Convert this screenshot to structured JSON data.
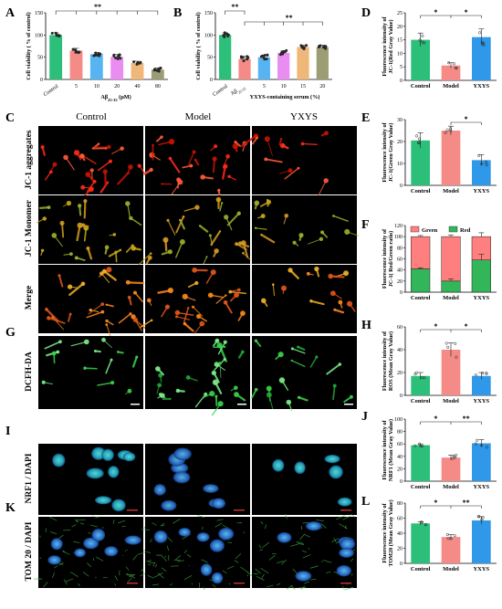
{
  "figure": {
    "panel_letters": [
      "A",
      "B",
      "C",
      "D",
      "E",
      "F",
      "G",
      "H",
      "I",
      "J",
      "K",
      "L"
    ],
    "columns": [
      "Control",
      "Model",
      "YXYS"
    ],
    "rows": [
      "JC-1 aggregates",
      "JC-1  Monomer",
      "Merge",
      "DCFH-DA",
      "NRF1 / DAPI",
      "TOM 20 / DAPI"
    ]
  },
  "colors": {
    "control_green": "#2cbf7a",
    "model_pink": "#f48b87",
    "yxys_blue": "#2f98e8",
    "red_series": "#ff7f7f",
    "green_series": "#33b65a"
  },
  "chart_data": [
    {
      "panel": "A",
      "type": "bar",
      "ylabel": "Cell viability ( % of control)",
      "xlabel_prefix": "Aβ",
      "xlabel_sub": "25-35",
      "xlabel_suffix": " (μM)",
      "categories": [
        "Control",
        "5",
        "10",
        "20",
        "40",
        "80"
      ],
      "values": [
        100,
        65,
        57,
        51,
        37,
        22
      ],
      "errors": [
        5,
        5,
        4,
        5,
        4,
        4
      ],
      "colors": [
        "#2cbf7a",
        "#f48b87",
        "#56b4f2",
        "#e98df0",
        "#f0b77a",
        "#9c9c75"
      ],
      "ylim": [
        0,
        150
      ],
      "yticks": [
        0,
        50,
        100,
        150
      ],
      "significance": "**"
    },
    {
      "panel": "B",
      "type": "bar",
      "ylabel": "Cell viability ( % of control)",
      "xlabel": "YXYS-containing serum (%)",
      "categories": [
        "Control",
        "Aβ25-35",
        "5",
        "10",
        "15",
        "20"
      ],
      "cat_prefix_label": "Aβ",
      "cat_sub_label": "25-35",
      "values": [
        100,
        46,
        50,
        60,
        73,
        73
      ],
      "errors": [
        5,
        6,
        5,
        5,
        4,
        4
      ],
      "colors": [
        "#2cbf7a",
        "#f48b87",
        "#56b4f2",
        "#e98df0",
        "#f0b77a",
        "#9c9c75"
      ],
      "ylim": [
        0,
        150
      ],
      "yticks": [
        0,
        50,
        100,
        150
      ],
      "significance": [
        "**",
        "**"
      ]
    },
    {
      "panel": "D",
      "type": "bar",
      "ylabel": [
        "Fluorescence intensity of",
        "JC-1(Red Gray Value)"
      ],
      "categories": [
        "Control",
        "Model",
        "YXYS"
      ],
      "values": [
        15,
        5.5,
        16
      ],
      "errors": [
        2.5,
        1.0,
        3.0
      ],
      "ylim": [
        0,
        25
      ],
      "yticks": [
        0,
        5,
        10,
        15,
        20,
        25
      ],
      "significance": [
        "*",
        "*"
      ]
    },
    {
      "panel": "E",
      "type": "bar",
      "ylabel": [
        "Fluorescence intensity of",
        "JC-1(Green Gray Value)"
      ],
      "categories": [
        "Control",
        "Model",
        "YXYS"
      ],
      "values": [
        20.5,
        25,
        11.5
      ],
      "errors": [
        3.5,
        2.0,
        2.5
      ],
      "ylim": [
        0,
        30
      ],
      "yticks": [
        0,
        10,
        20,
        30
      ],
      "significance": [
        "*"
      ]
    },
    {
      "panel": "F",
      "type": "bar",
      "stacked": true,
      "ylabel": [
        "Fluorescence intensity of",
        "JC-1( Red/Green ratio)"
      ],
      "categories": [
        "Control",
        "Model",
        "YXYS"
      ],
      "legend": [
        "Green",
        "Red"
      ],
      "series": [
        {
          "name": "Red",
          "values": [
            42,
            20,
            58
          ],
          "errors": [
            2,
            4,
            10
          ]
        },
        {
          "name": "Green",
          "values": [
            58,
            80,
            42
          ],
          "errors": [
            2,
            3,
            7
          ]
        }
      ],
      "ylim": [
        0,
        120
      ],
      "yticks": [
        0,
        20,
        40,
        60,
        80,
        100,
        120
      ]
    },
    {
      "panel": "H",
      "type": "bar",
      "ylabel": [
        "Fluorescence intensity of",
        "ROS (Mean Gray Value)"
      ],
      "categories": [
        "Control",
        "Model",
        "YXYS"
      ],
      "values": [
        17,
        40,
        17
      ],
      "errors": [
        3,
        6,
        3
      ],
      "ylim": [
        0,
        60
      ],
      "yticks": [
        0,
        20,
        40,
        60
      ],
      "significance": [
        "*",
        "*"
      ]
    },
    {
      "panel": "J",
      "type": "bar",
      "ylabel": [
        "Fluorescence intensity of",
        "NRF1 (Mean Gray Value)"
      ],
      "categories": [
        "Control",
        "Model",
        "YXYS"
      ],
      "values": [
        58,
        38,
        61
      ],
      "errors": [
        2,
        4,
        6
      ],
      "ylim": [
        0,
        100
      ],
      "yticks": [
        0,
        20,
        40,
        60,
        80,
        100
      ],
      "significance": [
        "*",
        "**"
      ]
    },
    {
      "panel": "L",
      "type": "bar",
      "ylabel": [
        "Fluorescence intensity of",
        "TOM20 (Mean Gray Value)"
      ],
      "categories": [
        "Control",
        "Model",
        "YXYS"
      ],
      "values": [
        53,
        35,
        57
      ],
      "errors": [
        2,
        3,
        5
      ],
      "ylim": [
        0,
        80
      ],
      "yticks": [
        0,
        20,
        40,
        60,
        80
      ],
      "significance": [
        "*",
        "**"
      ]
    }
  ]
}
